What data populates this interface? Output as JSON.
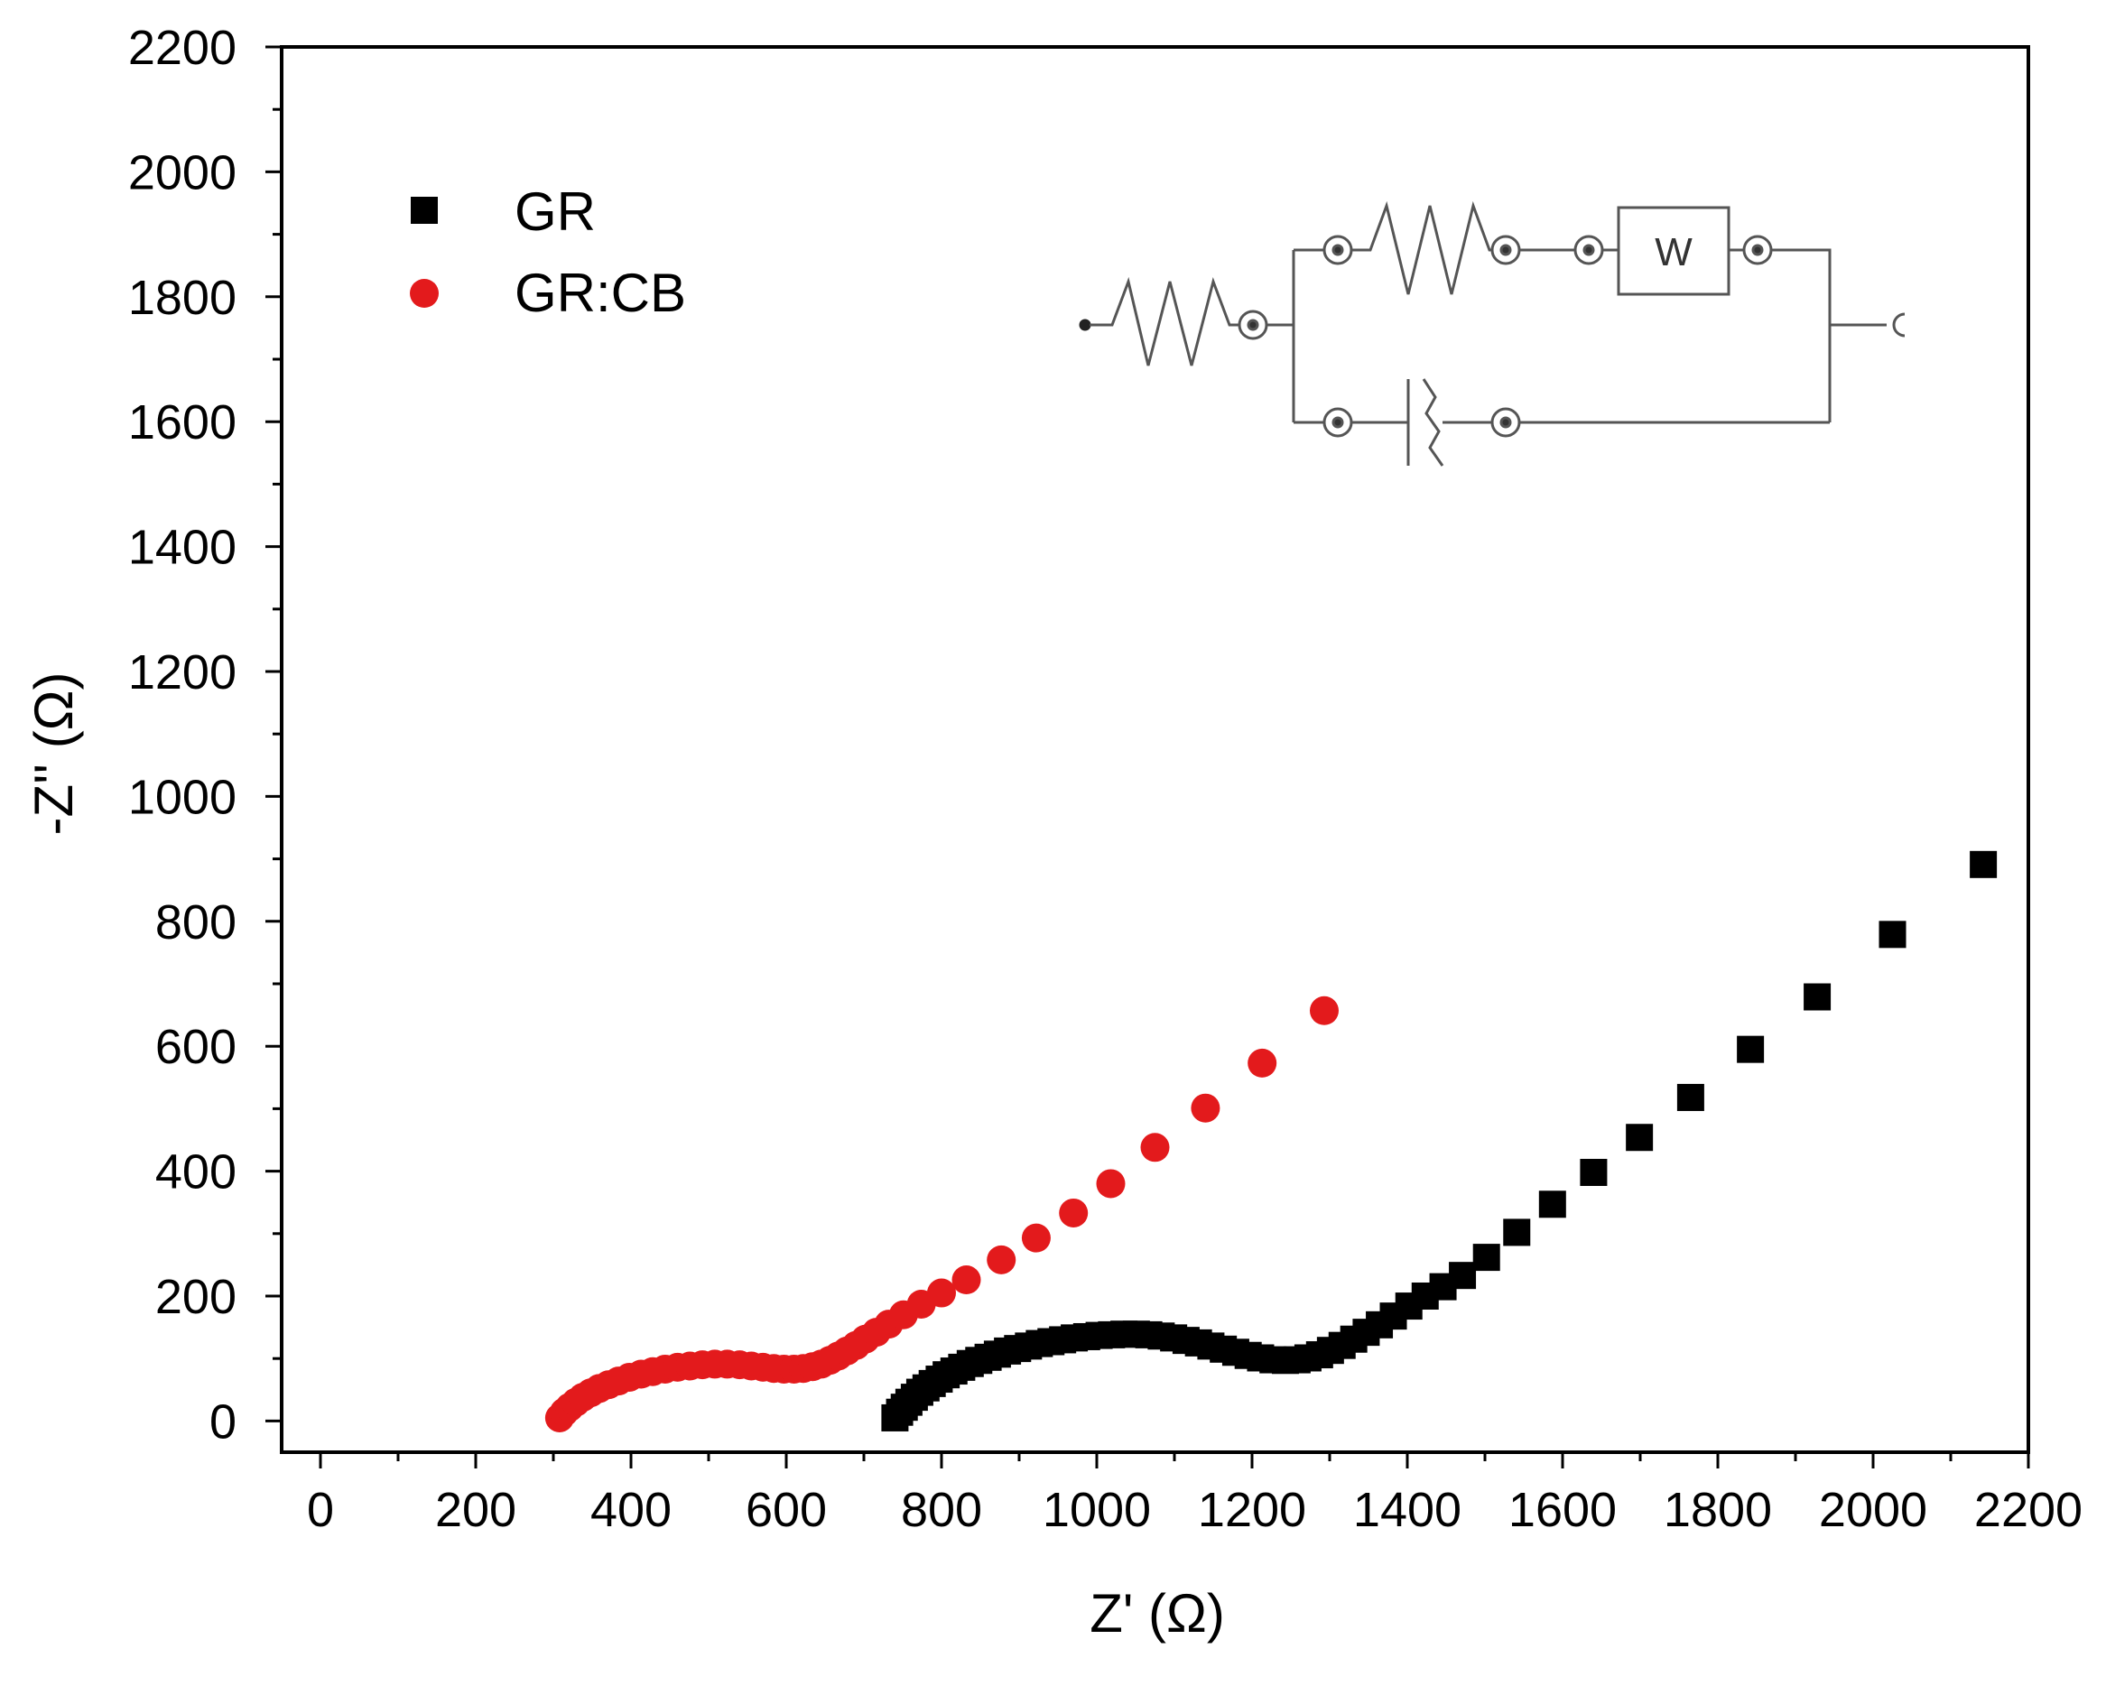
{
  "chart_data": {
    "type": "scatter",
    "title": "",
    "xlabel": "Z' (Ω)",
    "ylabel": "-Z'' (Ω)",
    "xlim": [
      -50,
      2200
    ],
    "ylim": [
      -50,
      2200
    ],
    "xticks": [
      0,
      200,
      400,
      600,
      800,
      1000,
      1200,
      1400,
      1600,
      1800,
      2000,
      2200
    ],
    "yticks": [
      0,
      200,
      400,
      600,
      800,
      1000,
      1200,
      1400,
      1600,
      1800,
      2000,
      2200
    ],
    "legend_position": "top-left",
    "series": [
      {
        "name": "GR",
        "marker": "square",
        "color": "#000000",
        "x": [
          740,
          746,
          752,
          758,
          765,
          772,
          780,
          788,
          797,
          806,
          816,
          826,
          837,
          848,
          860,
          872,
          885,
          898,
          912,
          926,
          941,
          956,
          971,
          987,
          1003,
          1019,
          1035,
          1051,
          1067,
          1083,
          1099,
          1115,
          1131,
          1147,
          1163,
          1179,
          1195,
          1211,
          1227,
          1243,
          1258,
          1272,
          1287,
          1301,
          1316,
          1331,
          1347,
          1364,
          1382,
          1402,
          1423,
          1446,
          1471,
          1502,
          1541,
          1587,
          1640,
          1699,
          1765,
          1842,
          1928,
          2025,
          2142
        ],
        "y": [
          5,
          14,
          22,
          30,
          38,
          46,
          53,
          60,
          67,
          74,
          80,
          86,
          92,
          97,
          102,
          107,
          112,
          116,
          120,
          124,
          127,
          130,
          133,
          135,
          137,
          138,
          139,
          139,
          138,
          136,
          133,
          129,
          125,
          120,
          115,
          110,
          105,
          101,
          98,
          97,
          98,
          101,
          106,
          113,
          121,
          131,
          142,
          154,
          168,
          184,
          200,
          215,
          233,
          262,
          302,
          347,
          398,
          454,
          518,
          595,
          679,
          779,
          891
        ]
      },
      {
        "name": "GR:CB",
        "marker": "circle",
        "color": "#e31a1c",
        "x": [
          308,
          314,
          321,
          329,
          338,
          348,
          359,
          371,
          384,
          398,
          413,
          428,
          444,
          460,
          476,
          492,
          508,
          524,
          540,
          555,
          570,
          584,
          597,
          610,
          622,
          634,
          645,
          656,
          667,
          678,
          690,
          702,
          716,
          732,
          751,
          774,
          800,
          832,
          877,
          922,
          970,
          1018,
          1075,
          1140,
          1213,
          1293
        ],
        "y": [
          5,
          14,
          22,
          30,
          38,
          45,
          52,
          58,
          64,
          70,
          75,
          79,
          83,
          86,
          88,
          90,
          91,
          91,
          90,
          88,
          86,
          84,
          83,
          83,
          84,
          87,
          91,
          97,
          104,
          112,
          121,
          131,
          142,
          155,
          170,
          187,
          205,
          226,
          258,
          293,
          333,
          380,
          438,
          501,
          573,
          657
        ]
      }
    ]
  },
  "circuit": {
    "warburg_label": "W"
  }
}
